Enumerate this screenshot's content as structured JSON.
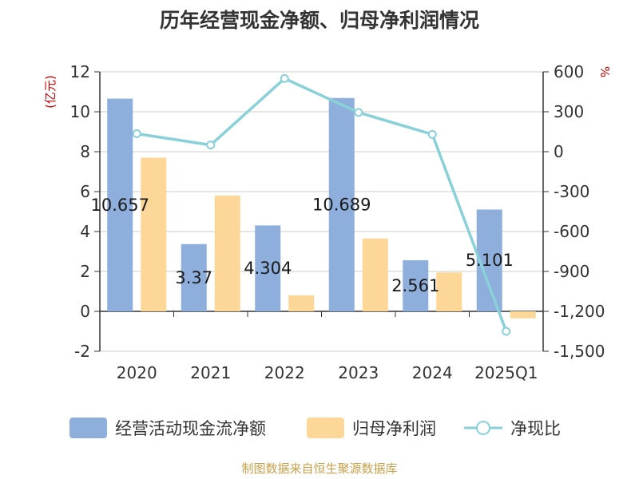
{
  "chart_data": {
    "type": "bar",
    "title": "历年经营现金净额、归母净利润情况",
    "categories": [
      "2020",
      "2021",
      "2022",
      "2023",
      "2024",
      "2025Q1"
    ],
    "y_left": {
      "unit": "(亿元)",
      "min": -2,
      "max": 12,
      "ticks": [
        -2,
        0,
        2,
        4,
        6,
        8,
        10,
        12
      ]
    },
    "y_right": {
      "unit": "%",
      "min": -1500,
      "max": 600,
      "ticks": [
        600,
        300,
        0,
        -300,
        -600,
        -900,
        -1200,
        -1500
      ],
      "tick_labels": [
        "600",
        "300",
        "0",
        "-300",
        "-600",
        "-900",
        "-1,200",
        "-1,500"
      ]
    },
    "series": [
      {
        "name": "经营活动现金流净额",
        "type": "bar",
        "axis": "left",
        "color": "#8eaedb",
        "values": [
          10.657,
          3.37,
          4.304,
          10.689,
          2.561,
          5.101
        ],
        "labels": [
          "10.657",
          "3.37",
          "4.304",
          "10.689",
          "2.561",
          "5.101"
        ]
      },
      {
        "name": "归母净利润",
        "type": "bar",
        "axis": "left",
        "color": "#fdd797",
        "values": [
          7.7,
          5.8,
          0.8,
          3.65,
          1.95,
          -0.35
        ]
      },
      {
        "name": "净现比",
        "type": "line",
        "axis": "right",
        "color": "#89d1d8",
        "values": [
          135,
          50,
          550,
          295,
          130,
          -1350
        ]
      }
    ],
    "grid": true,
    "legend": "bottom"
  },
  "footer": {
    "source": "制图数据来自恒生聚源数据库"
  }
}
